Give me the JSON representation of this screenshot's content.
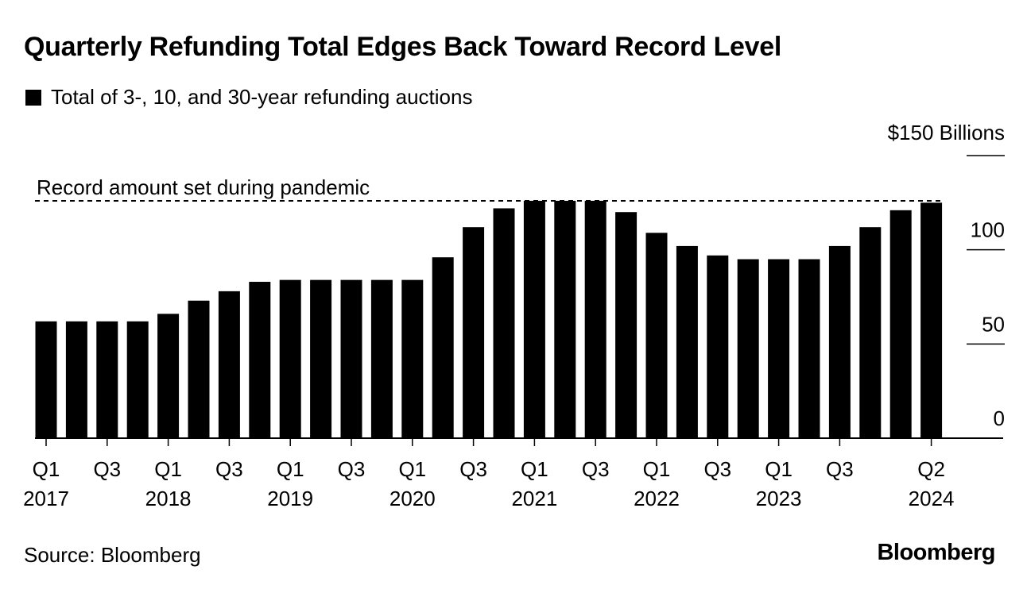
{
  "chart_data": {
    "type": "bar",
    "title": "Quarterly Refunding Total Edges Back Toward Record Level",
    "legend_label": "Total of 3-, 10, and 30-year refunding auctions",
    "unit_label": "$150 Billions",
    "ylim": [
      0,
      150
    ],
    "yticks": [
      {
        "value": 0,
        "label": "0"
      },
      {
        "value": 50,
        "label": "50"
      },
      {
        "value": 100,
        "label": "100"
      },
      {
        "value": 150,
        "label": "$150 Billions"
      }
    ],
    "categories": [
      "Q1 2017",
      "Q2 2017",
      "Q3 2017",
      "Q4 2017",
      "Q1 2018",
      "Q2 2018",
      "Q3 2018",
      "Q4 2018",
      "Q1 2019",
      "Q2 2019",
      "Q3 2019",
      "Q4 2019",
      "Q1 2020",
      "Q2 2020",
      "Q3 2020",
      "Q4 2020",
      "Q1 2021",
      "Q2 2021",
      "Q3 2021",
      "Q4 2021",
      "Q1 2022",
      "Q2 2022",
      "Q3 2022",
      "Q4 2022",
      "Q1 2023",
      "Q2 2023",
      "Q3 2023",
      "Q4 2023",
      "Q1 2024",
      "Q2 2024"
    ],
    "values": [
      62,
      62,
      62,
      62,
      66,
      73,
      78,
      83,
      84,
      84,
      84,
      84,
      84,
      96,
      112,
      122,
      126,
      126,
      126,
      120,
      109,
      102,
      97,
      95,
      95,
      95,
      102,
      112,
      121,
      125
    ],
    "x_tick_labels": [
      {
        "index": 0,
        "quarter": "Q1",
        "year": "2017"
      },
      {
        "index": 2,
        "quarter": "Q3",
        "year": ""
      },
      {
        "index": 4,
        "quarter": "Q1",
        "year": "2018"
      },
      {
        "index": 6,
        "quarter": "Q3",
        "year": ""
      },
      {
        "index": 8,
        "quarter": "Q1",
        "year": "2019"
      },
      {
        "index": 10,
        "quarter": "Q3",
        "year": ""
      },
      {
        "index": 12,
        "quarter": "Q1",
        "year": "2020"
      },
      {
        "index": 14,
        "quarter": "Q3",
        "year": ""
      },
      {
        "index": 16,
        "quarter": "Q1",
        "year": "2021"
      },
      {
        "index": 18,
        "quarter": "Q3",
        "year": ""
      },
      {
        "index": 20,
        "quarter": "Q1",
        "year": "2022"
      },
      {
        "index": 22,
        "quarter": "Q3",
        "year": ""
      },
      {
        "index": 24,
        "quarter": "Q1",
        "year": "2023"
      },
      {
        "index": 26,
        "quarter": "Q3",
        "year": ""
      },
      {
        "index": 29,
        "quarter": "Q2",
        "year": "2024"
      }
    ],
    "reference_line": {
      "value": 126,
      "label": "Record amount set during pandemic",
      "style": "dashed"
    },
    "bar_color": "#000000",
    "grid": false
  },
  "footer": {
    "source": "Source: Bloomberg",
    "brand": "Bloomberg"
  }
}
